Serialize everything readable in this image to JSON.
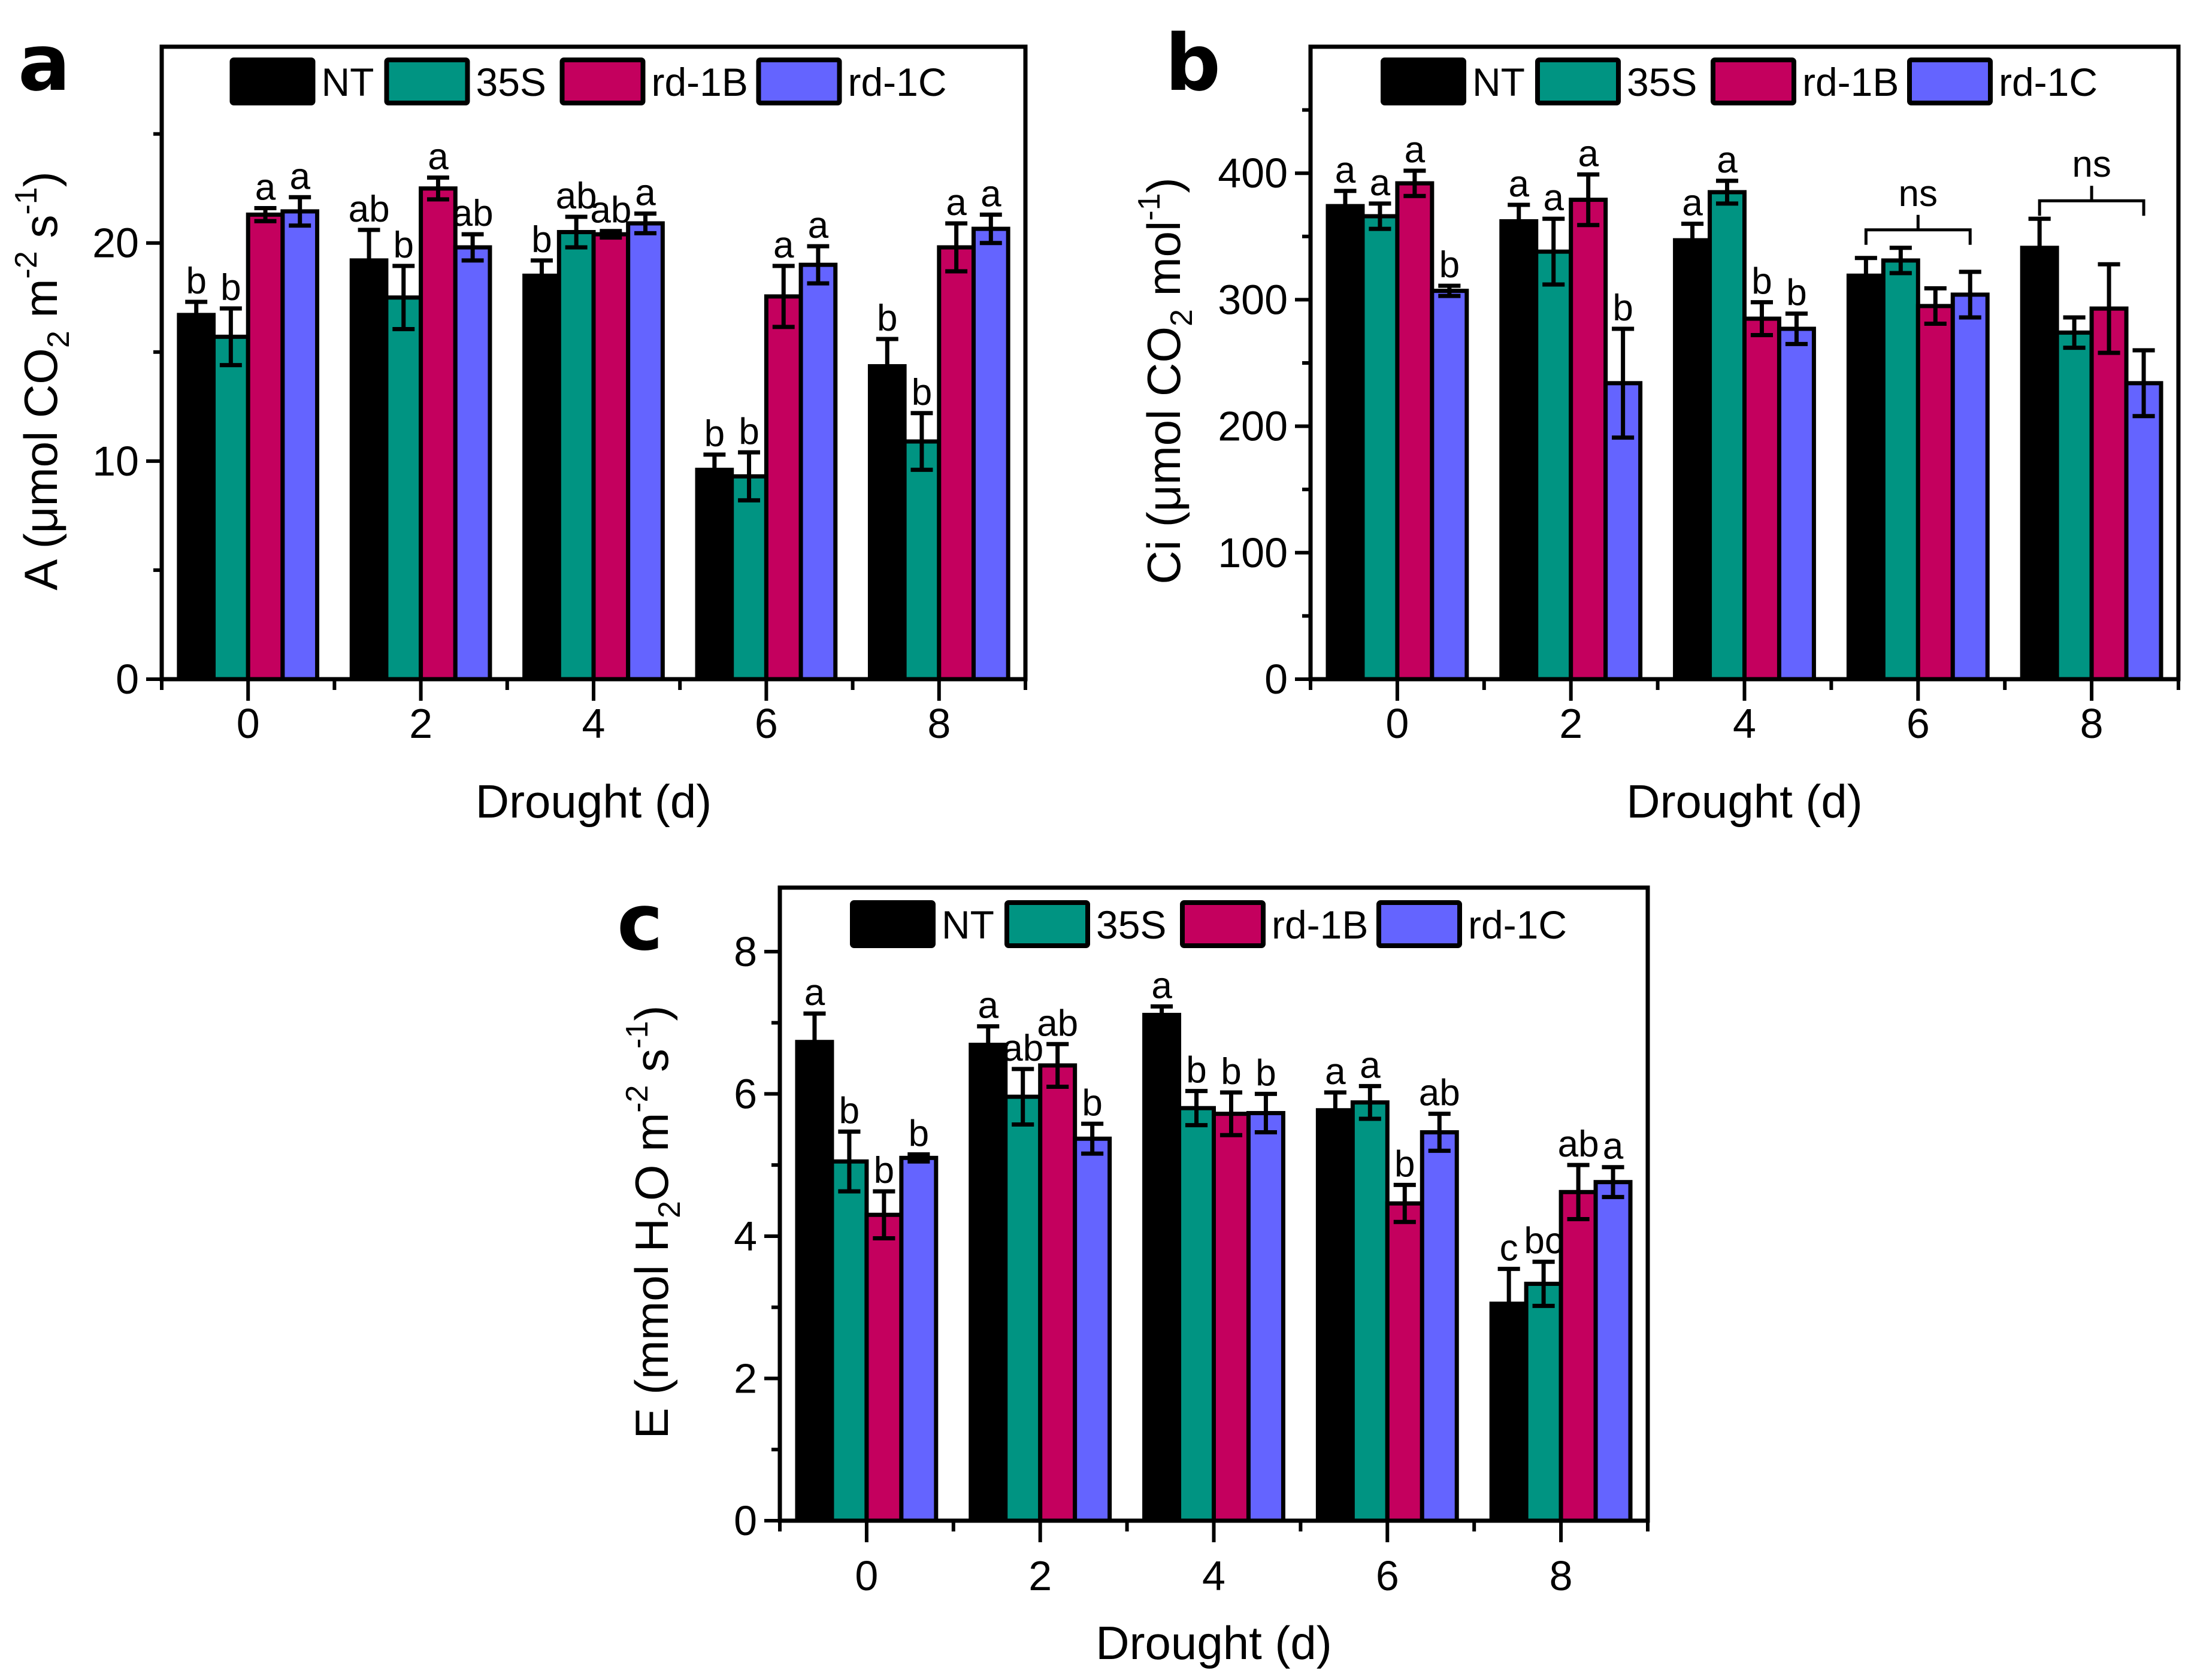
{
  "figure": {
    "series_colors": {
      "NT": "#000000",
      "35S": "#009482",
      "rd-1B": "#C4005E",
      "rd-1C": "#6464FF"
    },
    "legend": [
      "NT",
      "35S",
      "rd-1B",
      "rd-1C"
    ]
  },
  "chart_data": [
    {
      "panel": "a",
      "type": "bar",
      "title": "",
      "xlabel": "Drought (d)",
      "ylabel": "A (μmol CO2 m-2 s-1)",
      "ylabel_parts": {
        "main": "A (μmol CO",
        "sub": "2",
        "mid": " m",
        "sup1": "-2",
        "mid2": " s",
        "sup2": "-1",
        "end": ")"
      },
      "categories": [
        "0",
        "2",
        "4",
        "6",
        "8"
      ],
      "ylim": [
        0,
        29
      ],
      "yticks": [
        0,
        10,
        20
      ],
      "yminor": [
        5,
        15,
        25
      ],
      "legend_position": "top",
      "series": [
        {
          "name": "NT",
          "values": [
            16.7,
            19.2,
            18.5,
            9.6,
            14.35
          ],
          "errors": [
            0.6,
            1.4,
            0.7,
            0.7,
            1.25
          ],
          "letters": [
            "b",
            "ab",
            "b",
            "b",
            "b"
          ]
        },
        {
          "name": "35S",
          "values": [
            15.7,
            17.5,
            20.5,
            9.3,
            10.9
          ],
          "errors": [
            1.3,
            1.45,
            0.7,
            1.1,
            1.3
          ],
          "letters": [
            "b",
            "b",
            "ab",
            "b",
            "b"
          ]
        },
        {
          "name": "rd-1B",
          "values": [
            21.3,
            22.5,
            20.4,
            17.55,
            19.8
          ],
          "errors": [
            0.3,
            0.5,
            0.15,
            1.4,
            1.1
          ],
          "letters": [
            "a",
            "a",
            "ab",
            "a",
            "a"
          ]
        },
        {
          "name": "rd-1C",
          "values": [
            21.45,
            19.8,
            20.9,
            19.0,
            20.65
          ],
          "errors": [
            0.65,
            0.6,
            0.45,
            0.85,
            0.65
          ],
          "letters": [
            "a",
            "ab",
            "a",
            "a",
            "a"
          ]
        }
      ],
      "ns_brackets": []
    },
    {
      "panel": "b",
      "type": "bar",
      "title": "",
      "xlabel": "Drought (d)",
      "ylabel": "Ci (μmol CO2 mol-1)",
      "ylabel_parts": {
        "main": "Ci (μmol CO",
        "sub": "2",
        "mid": " mol",
        "sup1": "-1",
        "mid2": "",
        "sup2": "",
        "end": ")"
      },
      "categories": [
        "0",
        "2",
        "4",
        "6",
        "8"
      ],
      "ylim": [
        0,
        500
      ],
      "yticks": [
        0,
        100,
        200,
        300,
        400
      ],
      "yminor": [
        50,
        150,
        250,
        350,
        450
      ],
      "legend_position": "top",
      "series": [
        {
          "name": "NT",
          "values": [
            374,
            362,
            347,
            319,
            341
          ],
          "errors": [
            12,
            13,
            13,
            14,
            23
          ],
          "letters": [
            "a",
            "a",
            "a",
            "",
            ""
          ]
        },
        {
          "name": "35S",
          "values": [
            366,
            338,
            385,
            331,
            274
          ],
          "errors": [
            10,
            26,
            9,
            10,
            12
          ],
          "letters": [
            "a",
            "a",
            "a",
            "",
            ""
          ]
        },
        {
          "name": "rd-1B",
          "values": [
            392,
            379,
            285,
            295,
            293
          ],
          "errors": [
            10,
            20,
            13,
            14,
            35
          ],
          "letters": [
            "a",
            "a",
            "b",
            "",
            ""
          ]
        },
        {
          "name": "rd-1C",
          "values": [
            307,
            234,
            277,
            304,
            234
          ],
          "errors": [
            4,
            43,
            12,
            18,
            26
          ],
          "letters": [
            "b",
            "b",
            "b",
            "",
            ""
          ]
        }
      ],
      "ns_brackets": [
        {
          "category": "6",
          "label": "ns"
        },
        {
          "category": "8",
          "label": "ns"
        }
      ]
    },
    {
      "panel": "c",
      "type": "bar",
      "title": "",
      "xlabel": "Drought (d)",
      "ylabel": "E (mmol H2O m-2 s-1)",
      "ylabel_parts": {
        "main": "E (mmol H",
        "sub": "2",
        "mid": "O m",
        "sup1": "-2",
        "mid2": " s",
        "sup2": "-1",
        "end": ")"
      },
      "categories": [
        "0",
        "2",
        "4",
        "6",
        "8"
      ],
      "ylim": [
        0,
        8.9
      ],
      "yticks": [
        0,
        2,
        4,
        6,
        8
      ],
      "yminor": [
        1,
        3,
        5,
        7
      ],
      "legend_position": "top",
      "series": [
        {
          "name": "NT",
          "values": [
            6.73,
            6.69,
            7.11,
            5.77,
            3.05
          ],
          "errors": [
            0.4,
            0.26,
            0.12,
            0.25,
            0.49
          ],
          "letters": [
            "a",
            "a",
            "a",
            "a",
            "c"
          ]
        },
        {
          "name": "35S",
          "values": [
            5.05,
            5.96,
            5.8,
            5.88,
            3.33
          ],
          "errors": [
            0.42,
            0.39,
            0.24,
            0.23,
            0.31
          ],
          "letters": [
            "b",
            "ab",
            "b",
            "a",
            "bc"
          ]
        },
        {
          "name": "rd-1B",
          "values": [
            4.3,
            6.4,
            5.72,
            4.46,
            4.62
          ],
          "errors": [
            0.33,
            0.3,
            0.3,
            0.26,
            0.38
          ],
          "letters": [
            "b",
            "ab",
            "b",
            "b",
            "ab"
          ]
        },
        {
          "name": "rd-1C",
          "values": [
            5.1,
            5.37,
            5.73,
            5.46,
            4.76
          ],
          "errors": [
            0.05,
            0.21,
            0.27,
            0.26,
            0.21
          ],
          "letters": [
            "b",
            "b",
            "b",
            "ab",
            "a"
          ]
        }
      ],
      "ns_brackets": []
    }
  ]
}
